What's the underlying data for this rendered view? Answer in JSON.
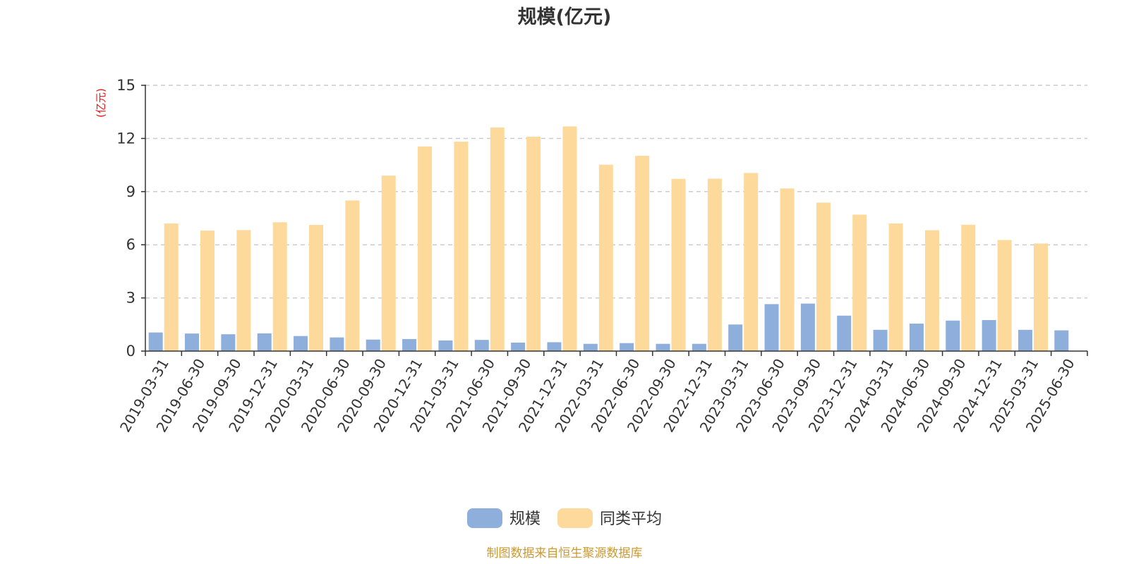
{
  "chart_data": {
    "type": "bar",
    "title": "规模(亿元)",
    "unit_label": "(亿元)",
    "source_note": "制图数据来自恒生聚源数据库",
    "ylim": [
      0,
      15
    ],
    "yticks": [
      0,
      3,
      6,
      9,
      12,
      15
    ],
    "grid": true,
    "legend_position": "bottom",
    "categories": [
      "2019-03-31",
      "2019-06-30",
      "2019-09-30",
      "2019-12-31",
      "2020-03-31",
      "2020-06-30",
      "2020-09-30",
      "2020-12-31",
      "2021-03-31",
      "2021-06-30",
      "2021-09-30",
      "2021-12-31",
      "2022-03-31",
      "2022-06-30",
      "2022-09-30",
      "2022-12-31",
      "2023-03-31",
      "2023-06-30",
      "2023-09-30",
      "2023-12-31",
      "2024-03-31",
      "2024-06-30",
      "2024-09-30",
      "2024-12-31",
      "2025-03-31",
      "2025-06-30"
    ],
    "series": [
      {
        "name": "规模",
        "color": "#8eaedb",
        "values": [
          1.05,
          0.99,
          0.95,
          1.0,
          0.85,
          0.77,
          0.65,
          0.68,
          0.6,
          0.63,
          0.48,
          0.5,
          0.41,
          0.45,
          0.41,
          0.41,
          1.5,
          2.65,
          2.68,
          2.0,
          1.2,
          1.55,
          1.72,
          1.75,
          1.2,
          1.17
        ]
      },
      {
        "name": "同类平均",
        "color": "#fdd99b",
        "values": [
          7.2,
          6.8,
          6.83,
          7.27,
          7.12,
          8.5,
          9.9,
          11.55,
          11.82,
          12.62,
          12.1,
          12.68,
          10.52,
          11.02,
          9.72,
          9.73,
          10.05,
          9.18,
          8.38,
          7.7,
          7.2,
          6.82,
          7.13,
          6.27,
          6.07,
          null
        ]
      }
    ],
    "source_color": "#cc9933"
  }
}
